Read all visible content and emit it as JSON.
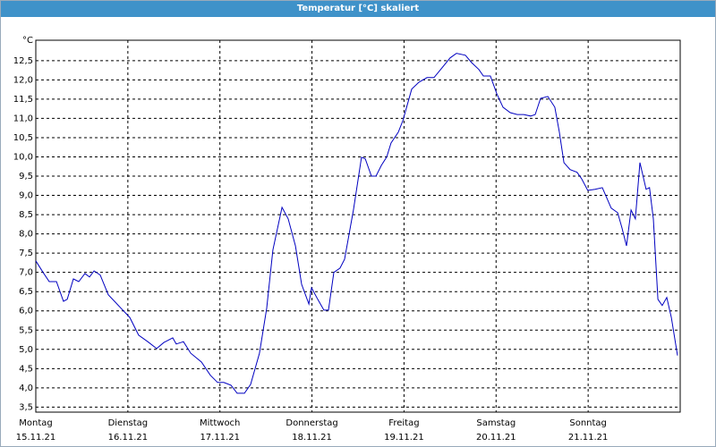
{
  "chart_data": {
    "type": "line",
    "title": "Temperatur [°C] skaliert",
    "y_unit": "°C",
    "xlim": [
      0,
      168
    ],
    "ylim": [
      3.37,
      13.03
    ],
    "xticks": [
      {
        "value": 0,
        "label": "Montag"
      },
      {
        "value": 24,
        "label": "Dienstag"
      },
      {
        "value": 48,
        "label": "Mittwoch"
      },
      {
        "value": 72,
        "label": "Donnerstag"
      },
      {
        "value": 96,
        "label": "Freitag"
      },
      {
        "value": 120,
        "label": "Samstag"
      },
      {
        "value": 144,
        "label": "Sonntag"
      }
    ],
    "xtick_dates": [
      "15.11.21",
      "16.11.21",
      "17.11.21",
      "18.11.21",
      "19.11.21",
      "20.11.21",
      "21.11.21"
    ],
    "yticks": [
      {
        "value": 3.5,
        "label": "3,5"
      },
      {
        "value": 4.0,
        "label": "4,0"
      },
      {
        "value": 4.5,
        "label": "4,5"
      },
      {
        "value": 5.0,
        "label": "5,0"
      },
      {
        "value": 5.5,
        "label": "5,5"
      },
      {
        "value": 6.0,
        "label": "6,0"
      },
      {
        "value": 6.5,
        "label": "6,5"
      },
      {
        "value": 7.0,
        "label": "7,0"
      },
      {
        "value": 7.5,
        "label": "7,5"
      },
      {
        "value": 8.0,
        "label": "8,0"
      },
      {
        "value": 8.5,
        "label": "8,5"
      },
      {
        "value": 9.0,
        "label": "9,0"
      },
      {
        "value": 9.5,
        "label": "9,5"
      },
      {
        "value": 10.0,
        "label": "10,0"
      },
      {
        "value": 10.5,
        "label": "10,5"
      },
      {
        "value": 11.0,
        "label": "11,0"
      },
      {
        "value": 11.5,
        "label": "11,5"
      },
      {
        "value": 12.0,
        "label": "12,0"
      },
      {
        "value": 12.5,
        "label": "12,5"
      }
    ],
    "grid": true,
    "x": [
      0,
      1.9,
      3.5,
      5.4,
      7.2,
      8.2,
      9.8,
      11.2,
      12.8,
      14.0,
      15.2,
      16.8,
      18.9,
      20.5,
      22.2,
      24.5,
      26.8,
      29.2,
      31.5,
      33.4,
      35.7,
      36.6,
      38.5,
      40.4,
      43.2,
      45.5,
      47.4,
      49.0,
      50.9,
      52.5,
      54.4,
      56.0,
      58.3,
      60.2,
      61.8,
      64.2,
      65.8,
      67.7,
      69.3,
      71.2,
      71.9,
      73.5,
      75.1,
      76.3,
      77.7,
      79.3,
      80.5,
      82.8,
      84.9,
      85.9,
      87.5,
      88.7,
      90.1,
      91.5,
      92.6,
      94.5,
      95.7,
      98.0,
      99.9,
      102.0,
      103.8,
      105.7,
      108.0,
      109.7,
      112.0,
      113.6,
      115.5,
      116.7,
      118.5,
      120.2,
      121.8,
      123.7,
      125.5,
      127.2,
      129.0,
      130.2,
      131.6,
      133.5,
      135.3,
      136.5,
      137.7,
      139.3,
      141.1,
      142.3,
      143.9,
      145.8,
      147.7,
      150.0,
      151.7,
      152.8,
      154.0,
      155.2,
      156.3,
      157.5,
      159.1,
      160.0,
      161.0,
      162.2,
      163.3,
      164.5,
      165.7,
      167.3
    ],
    "series": [
      {
        "color": "#0000c0",
        "values": [
          7.3,
          7.0,
          6.76,
          6.76,
          6.25,
          6.3,
          6.83,
          6.76,
          6.97,
          6.88,
          7.04,
          6.93,
          6.42,
          6.25,
          6.07,
          5.83,
          5.37,
          5.2,
          5.02,
          5.18,
          5.3,
          5.14,
          5.2,
          4.9,
          4.67,
          4.33,
          4.14,
          4.14,
          4.07,
          3.86,
          3.86,
          4.09,
          4.9,
          6.07,
          7.58,
          8.69,
          8.39,
          7.69,
          6.69,
          6.18,
          6.6,
          6.3,
          6.02,
          6.02,
          7.0,
          7.11,
          7.34,
          8.62,
          9.99,
          9.95,
          9.5,
          9.5,
          9.78,
          10.0,
          10.36,
          10.64,
          10.94,
          11.76,
          11.94,
          12.06,
          12.06,
          12.29,
          12.57,
          12.69,
          12.64,
          12.45,
          12.27,
          12.1,
          12.1,
          11.64,
          11.29,
          11.15,
          11.1,
          11.1,
          11.06,
          11.1,
          11.52,
          11.57,
          11.29,
          10.64,
          9.85,
          9.67,
          9.6,
          9.43,
          9.13,
          9.16,
          9.2,
          8.67,
          8.55,
          8.16,
          7.69,
          8.62,
          8.39,
          9.85,
          9.16,
          9.2,
          8.39,
          6.3,
          6.14,
          6.35,
          5.83,
          4.84
        ]
      }
    ]
  }
}
